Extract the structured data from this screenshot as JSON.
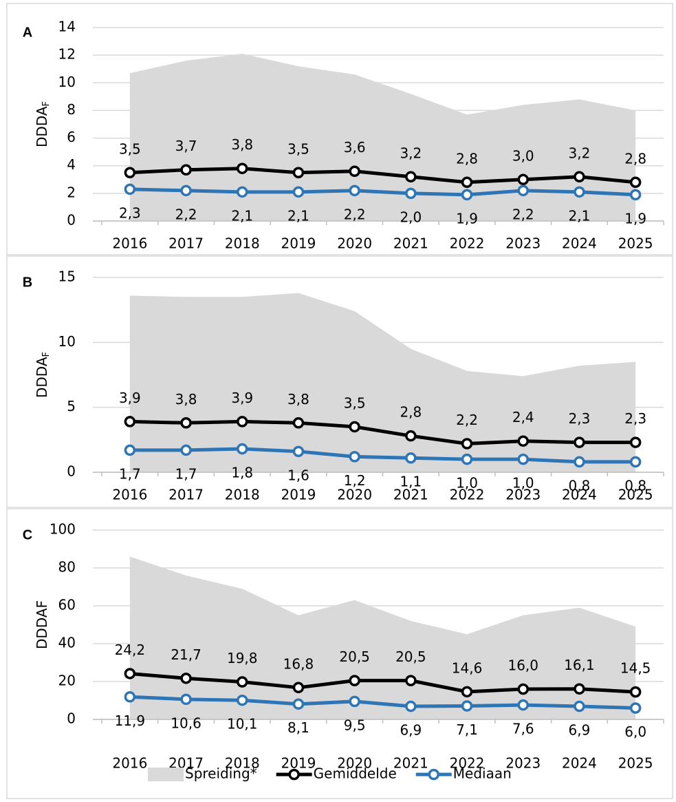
{
  "chart_data": [
    {
      "type": "line",
      "panel": "A",
      "ylabel": "DDDA",
      "ylabel_sub": "F",
      "categories": [
        "2016",
        "2017",
        "2018",
        "2019",
        "2020",
        "2021",
        "2022",
        "2023",
        "2024",
        "2025"
      ],
      "ylim": [
        0,
        14
      ],
      "yticks": [
        0,
        2,
        4,
        6,
        8,
        10,
        12,
        14
      ],
      "grid": true,
      "series": [
        {
          "kind": "area",
          "color": "#d9d9d9",
          "values": [
            10.7,
            11.6,
            12.1,
            11.2,
            10.6,
            9.2,
            7.7,
            8.4,
            8.8,
            8.0
          ]
        },
        {
          "kind": "line",
          "color": "#000000",
          "values": [
            3.5,
            3.7,
            3.8,
            3.5,
            3.6,
            3.2,
            2.8,
            3.0,
            3.2,
            2.8
          ],
          "value_labels": [
            "3,5",
            "3,7",
            "3,8",
            "3,5",
            "3,6",
            "3,2",
            "2,8",
            "3,0",
            "3,2",
            "2,8"
          ]
        },
        {
          "kind": "line",
          "color": "#2e75b6",
          "values": [
            2.3,
            2.2,
            2.1,
            2.1,
            2.2,
            2.0,
            1.9,
            2.2,
            2.1,
            1.9
          ],
          "value_labels": [
            "2,3",
            "2,2",
            "2,1",
            "2,1",
            "2,2",
            "2,0",
            "1,9",
            "2,2",
            "2,1",
            "1,9"
          ]
        }
      ]
    },
    {
      "type": "line",
      "panel": "B",
      "ylabel": "DDDA",
      "ylabel_sub": "F",
      "categories": [
        "2016",
        "2017",
        "2018",
        "2019",
        "2020",
        "2021",
        "2022",
        "2023",
        "2024",
        "2025"
      ],
      "ylim": [
        0,
        15
      ],
      "yticks": [
        0,
        5,
        10,
        15
      ],
      "grid": true,
      "series": [
        {
          "kind": "area",
          "color": "#d9d9d9",
          "values": [
            13.6,
            13.5,
            13.5,
            13.8,
            12.4,
            9.5,
            7.8,
            7.4,
            8.2,
            8.5
          ]
        },
        {
          "kind": "line",
          "color": "#000000",
          "values": [
            3.9,
            3.8,
            3.9,
            3.8,
            3.5,
            2.8,
            2.2,
            2.4,
            2.3,
            2.3
          ],
          "value_labels": [
            "3,9",
            "3,8",
            "3,9",
            "3,8",
            "3,5",
            "2,8",
            "2,2",
            "2,4",
            "2,3",
            "2,3"
          ]
        },
        {
          "kind": "line",
          "color": "#2e75b6",
          "values": [
            1.7,
            1.7,
            1.8,
            1.6,
            1.2,
            1.1,
            1.0,
            1.0,
            0.8,
            0.8
          ],
          "value_labels": [
            "1,7",
            "1,7",
            "1,8",
            "1,6",
            "1,2",
            "1,1",
            "1,0",
            "1,0",
            "0,8",
            "0,8"
          ]
        }
      ]
    },
    {
      "type": "line",
      "panel": "C",
      "ylabel": "DDDAF",
      "categories": [
        "2016",
        "2017",
        "2018",
        "2019",
        "2020",
        "2021",
        "2022",
        "2023",
        "2024",
        "2025"
      ],
      "ylim": [
        0,
        100
      ],
      "yticks": [
        0,
        20,
        40,
        60,
        80,
        100
      ],
      "grid": true,
      "series": [
        {
          "kind": "area",
          "name": "Spreiding*",
          "color": "#d9d9d9",
          "values": [
            86,
            76,
            69,
            55,
            63,
            52,
            45,
            55,
            59,
            49
          ]
        },
        {
          "kind": "line",
          "name": "Gemiddelde",
          "color": "#000000",
          "values": [
            24.2,
            21.7,
            19.8,
            16.8,
            20.5,
            20.5,
            14.6,
            16.0,
            16.1,
            14.5
          ],
          "value_labels": [
            "24,2",
            "21,7",
            "19,8",
            "16,8",
            "20,5",
            "20,5",
            "14,6",
            "16,0",
            "16,1",
            "14,5"
          ]
        },
        {
          "kind": "line",
          "name": "Mediaan",
          "color": "#2e75b6",
          "values": [
            11.9,
            10.6,
            10.1,
            8.1,
            9.5,
            6.9,
            7.1,
            7.6,
            6.9,
            6.0
          ],
          "value_labels": [
            "11,9",
            "10,6",
            "10,1",
            "8,1",
            "9,5",
            "6,9",
            "7,1",
            "7,6",
            "6,9",
            "6,0"
          ]
        }
      ]
    }
  ]
}
